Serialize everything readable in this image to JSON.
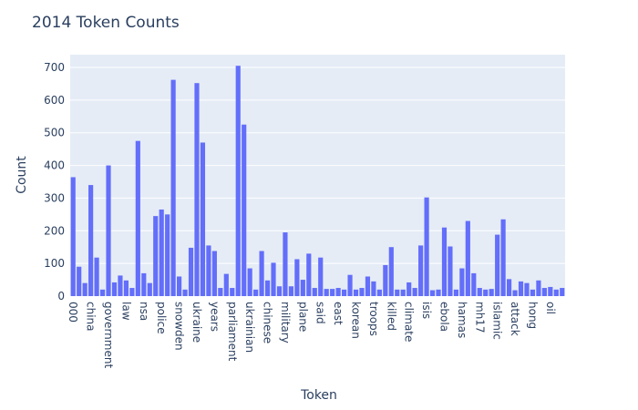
{
  "chart_data": {
    "type": "bar",
    "title": "2014 Token Counts",
    "x_label": "Token",
    "y_label": "Count",
    "categories": [
      "000",
      null,
      null,
      "china",
      null,
      null,
      "government",
      null,
      null,
      "law",
      null,
      null,
      "nsa",
      null,
      null,
      "police",
      null,
      null,
      "snowden",
      null,
      null,
      "ukraine",
      null,
      null,
      "years",
      null,
      null,
      "parliament",
      null,
      null,
      "ukrainian",
      null,
      null,
      "chinese",
      null,
      null,
      "military",
      null,
      null,
      "plane",
      null,
      null,
      "said",
      null,
      null,
      "east",
      null,
      null,
      "korean",
      null,
      null,
      "troops",
      null,
      null,
      "killed",
      null,
      null,
      "climate",
      null,
      null,
      "isis",
      null,
      null,
      "ebola",
      null,
      null,
      "hamas",
      null,
      null,
      "mh17",
      null,
      null,
      "islamic",
      null,
      null,
      "attack",
      null,
      null,
      "hong",
      null,
      null,
      "oil",
      null,
      null
    ],
    "values": [
      364,
      90,
      40,
      340,
      118,
      20,
      400,
      42,
      63,
      48,
      25,
      475,
      70,
      40,
      245,
      265,
      250,
      662,
      60,
      20,
      148,
      652,
      470,
      155,
      138,
      25,
      68,
      25,
      705,
      525,
      85,
      20,
      138,
      48,
      102,
      30,
      195,
      30,
      113,
      50,
      130,
      25,
      118,
      22,
      22,
      25,
      20,
      65,
      20,
      25,
      60,
      45,
      20,
      95,
      150,
      20,
      20,
      42,
      25,
      155,
      302,
      18,
      20,
      210,
      152,
      20,
      85,
      230,
      70,
      25,
      20,
      22,
      188,
      235,
      52,
      18,
      45,
      40,
      20,
      48,
      25,
      28,
      20,
      25
    ],
    "color": "#636efa",
    "ylim": [
      0,
      739
    ],
    "yticks": [
      0,
      100,
      200,
      300,
      400,
      500,
      600,
      700
    ],
    "grid": true
  }
}
